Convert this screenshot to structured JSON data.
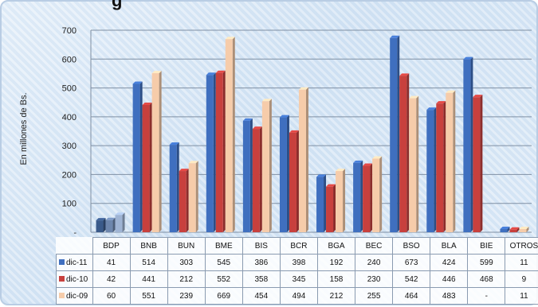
{
  "title_fragment": "g",
  "chart_data": {
    "type": "bar",
    "ylabel": "En millones de Bs.",
    "ylim": [
      0,
      700
    ],
    "yticks": [
      "-",
      "100",
      "200",
      "300",
      "400",
      "500",
      "600",
      "700"
    ],
    "grid": true,
    "categories": [
      "BDP",
      "BNB",
      "BUN",
      "BME",
      "BIS",
      "BCR",
      "BGA",
      "BEC",
      "BSO",
      "BLA",
      "BIE",
      "OTROS"
    ],
    "series": [
      {
        "name": "dic-11",
        "color": "#3f6fbf",
        "values": [
          41,
          514,
          303,
          545,
          386,
          398,
          192,
          240,
          673,
          424,
          599,
          11
        ],
        "labels": [
          "41",
          "514",
          "303",
          "545",
          "386",
          "398",
          "192",
          "240",
          "673",
          "424",
          "599",
          "11"
        ]
      },
      {
        "name": "dic-10",
        "color": "#c8403d",
        "values": [
          42,
          441,
          212,
          552,
          358,
          345,
          158,
          230,
          542,
          446,
          468,
          9
        ],
        "labels": [
          "42",
          "441",
          "212",
          "552",
          "358",
          "345",
          "158",
          "230",
          "542",
          "446",
          "468",
          "9"
        ]
      },
      {
        "name": "dic-09",
        "color": "#f6ccaa",
        "values": [
          60,
          551,
          239,
          669,
          454,
          494,
          212,
          255,
          464,
          483,
          0,
          11
        ],
        "labels": [
          "60",
          "551",
          "239",
          "669",
          "454",
          "494",
          "212",
          "255",
          "464",
          "483",
          "-",
          "11"
        ]
      }
    ]
  }
}
